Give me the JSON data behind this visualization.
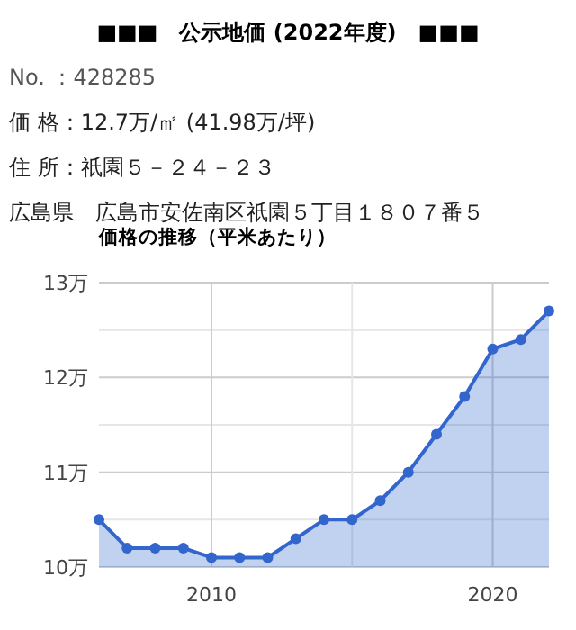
{
  "chart_data": {
    "type": "area",
    "title": "■■■　公示地価 (2022年度)　■■■",
    "subtitle": "価格の推移（平米あたり）",
    "annotations": [
      "No. ：428285",
      "価 格：12.7万/㎡ (41.98万/坪)",
      "住 所：祇園５－２４－２３",
      "広島県　広島市安佐南区祇園５丁目１８０７番５"
    ],
    "x": [
      2006,
      2007,
      2008,
      2009,
      2010,
      2011,
      2012,
      2013,
      2014,
      2015,
      2016,
      2017,
      2018,
      2019,
      2020,
      2021,
      2022
    ],
    "values": [
      10.5,
      10.2,
      10.2,
      10.2,
      10.1,
      10.1,
      10.1,
      10.3,
      10.5,
      10.5,
      10.7,
      11.0,
      11.4,
      11.8,
      12.3,
      12.4,
      12.7
    ],
    "color": "#3366cc",
    "xlim": [
      2006,
      2022
    ],
    "ylim": [
      10,
      13
    ],
    "xticks": [
      {
        "value": 2010,
        "label": "2010"
      },
      {
        "value": 2015,
        "label": null
      },
      {
        "value": 2020,
        "label": "2020"
      }
    ],
    "yticks": [
      {
        "value": 10,
        "label": "10万"
      },
      {
        "value": 10.5,
        "label": null
      },
      {
        "value": 11,
        "label": "11万"
      },
      {
        "value": 11.5,
        "label": null
      },
      {
        "value": 12,
        "label": "12万"
      },
      {
        "value": 12.5,
        "label": null
      },
      {
        "value": 13,
        "label": "13万"
      }
    ],
    "grid": true,
    "marker": "circle"
  }
}
